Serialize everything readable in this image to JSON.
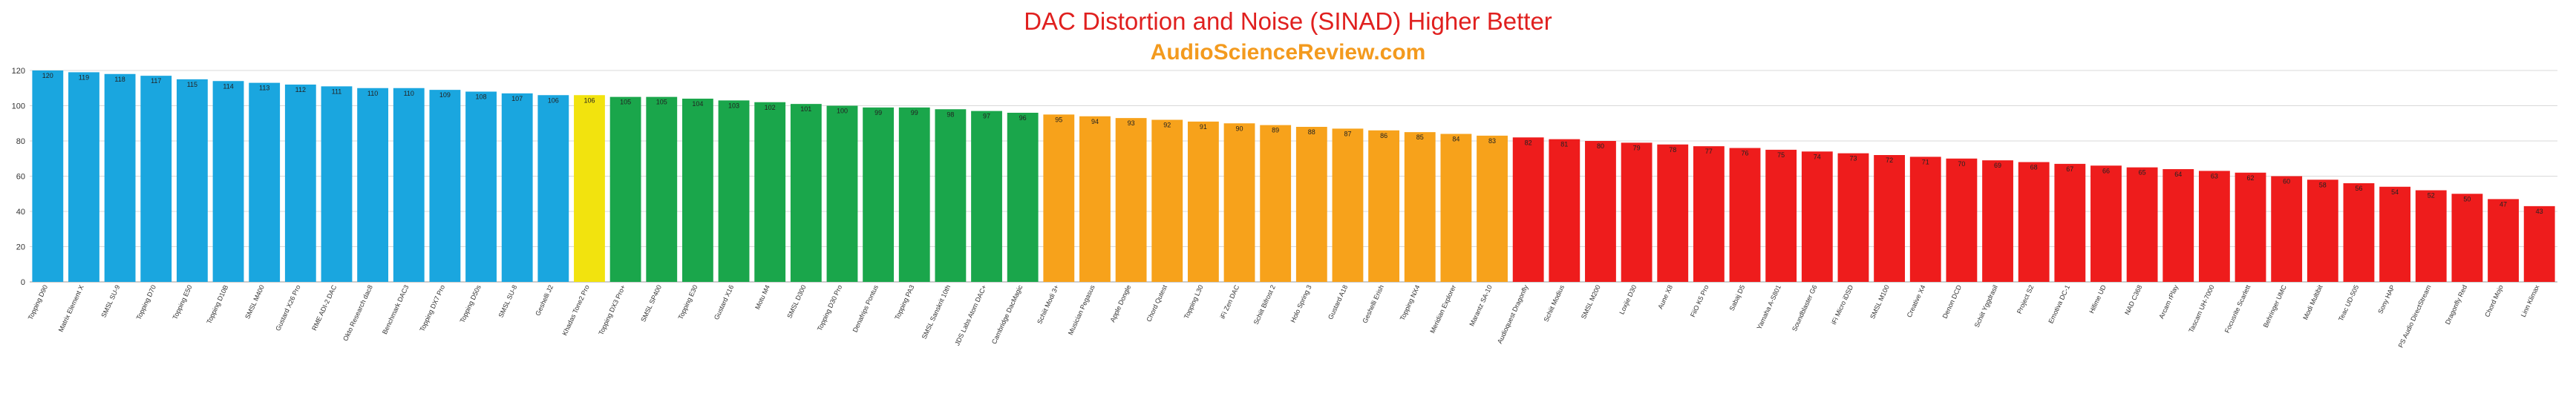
{
  "chart_data": {
    "type": "bar",
    "title": "DAC Distortion and Noise (SINAD) Higher Better",
    "subtitle": "AudioScienceReview.com",
    "ylim": [
      0,
      120
    ],
    "yticks": [
      0,
      20,
      40,
      60,
      80,
      100,
      120
    ],
    "grid": true,
    "colors": {
      "title": "#e0201f",
      "subtitle": "#f39a1e",
      "tier_top": "#1aa6df",
      "tier_threshold": "#f2e30e",
      "tier_good": "#1aa64b",
      "tier_fair": "#f7a21b",
      "tier_poor": "#ee1c1c",
      "grid": "#d9d9d9",
      "axis": "#999999"
    },
    "categories": [
      "Topping D90",
      "Matrix Element X",
      "SMSL SU-9",
      "Topping D70",
      "Topping E50",
      "Topping D10B",
      "SMSL M400",
      "Gustard X26 Pro",
      "RME ADI-2 DAC",
      "Okto Research dac8",
      "Benchmark DAC3",
      "Topping DX7 Pro",
      "Topping D50s",
      "SMSL SU-8",
      "Geshelli J2",
      "Khadas Tone2 Pro",
      "Topping DX3 Pro+",
      "SMSL SP400",
      "Topping E30",
      "Gustard X16",
      "Motu M4",
      "SMSL D300",
      "Topping D30 Pro",
      "Denafrips Pontus",
      "Topping PA3",
      "SMSL Sanskrit 10th",
      "JDS Labs Atom DAC+",
      "Cambridge DacMagic",
      "Schiit Modi 3+",
      "Musician Pegasus",
      "Apple Dongle",
      "Chord Qutest",
      "Topping L30",
      "iFi Zen DAC",
      "Schiit Bifrost 2",
      "Holo Spring 3",
      "Gustard A18",
      "Geshelli Erish",
      "Topping NX4",
      "Meridian Explorer",
      "Marantz SA-10",
      "Audioquest Dragonfly",
      "Schiit Modius",
      "SMSL M200",
      "Loxjie D30",
      "Aune X8",
      "FiiO K5 Pro",
      "Sabaj D5",
      "Yamaha A-S801",
      "Soundblaster G6",
      "iFi Micro iDSD",
      "SMSL M100",
      "Creative X4",
      "Denon DCD",
      "Schiit Yggdrasil",
      "Project S2",
      "Emotiva DC-1",
      "Hifime UD",
      "NAD C368",
      "Arcam rPlay",
      "Tascam UH-7000",
      "Focusrite Scarlett",
      "Behringer UMC",
      "Modi Multibit",
      "Teac UD-505",
      "Sony HAP",
      "PS Audio DirectStream",
      "Dragonfly Red",
      "Chord Mojo",
      "Linn Klimax"
    ],
    "values": [
      120,
      119,
      118,
      117,
      115,
      114,
      113,
      112,
      111,
      110,
      110,
      109,
      108,
      107,
      106,
      106,
      105,
      105,
      104,
      103,
      102,
      101,
      100,
      99,
      99,
      98,
      97,
      96,
      95,
      94,
      93,
      92,
      91,
      90,
      89,
      88,
      87,
      86,
      85,
      84,
      83,
      82,
      81,
      80,
      79,
      78,
      77,
      76,
      75,
      74,
      73,
      72,
      71,
      70,
      69,
      68,
      67,
      66,
      65,
      64,
      63,
      62,
      60,
      58,
      56,
      54,
      52,
      50,
      47,
      43
    ],
    "tiers": [
      "top",
      "top",
      "top",
      "top",
      "top",
      "top",
      "top",
      "top",
      "top",
      "top",
      "top",
      "top",
      "top",
      "top",
      "top",
      "threshold",
      "good",
      "good",
      "good",
      "good",
      "good",
      "good",
      "good",
      "good",
      "good",
      "good",
      "good",
      "good",
      "fair",
      "fair",
      "fair",
      "fair",
      "fair",
      "fair",
      "fair",
      "fair",
      "fair",
      "fair",
      "fair",
      "fair",
      "fair",
      "poor",
      "poor",
      "poor",
      "poor",
      "poor",
      "poor",
      "poor",
      "poor",
      "poor",
      "poor",
      "poor",
      "poor",
      "poor",
      "poor",
      "poor",
      "poor",
      "poor",
      "poor",
      "poor",
      "poor",
      "poor",
      "poor",
      "poor",
      "poor",
      "poor",
      "poor",
      "poor",
      "poor",
      "poor"
    ]
  }
}
